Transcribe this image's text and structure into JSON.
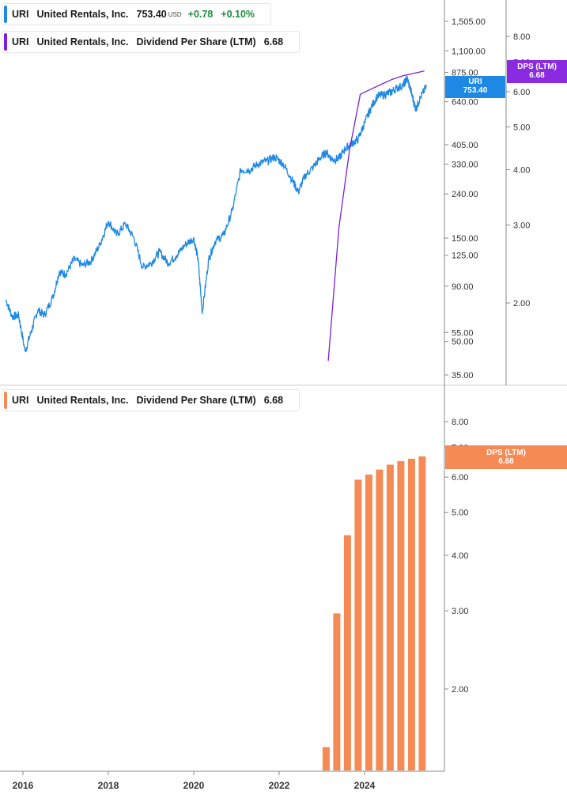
{
  "legends": {
    "price": {
      "ticker": "URI",
      "name": "United Rentals, Inc.",
      "price": "753.40",
      "currency": "USD",
      "change": "+0.78",
      "change_pct": "+0.10%"
    },
    "dps_line": {
      "ticker": "URI",
      "name": "United Rentals, Inc.",
      "metric": "Dividend Per Share (LTM)",
      "value": "6.68"
    },
    "dps_bar": {
      "ticker": "URI",
      "name": "United Rentals, Inc.",
      "metric": "Dividend Per Share (LTM)",
      "value": "6.68"
    }
  },
  "tags": {
    "price_tag": {
      "label": "URI",
      "value": "753.40"
    },
    "dps_tag_top": {
      "label": "DPS (LTM)",
      "value": "6.68"
    },
    "dps_tag_bottom": {
      "label": "DPS (LTM)",
      "value": "6.68"
    }
  },
  "colors": {
    "price_line": "#1e88e5",
    "dps_line": "#7b1fe0",
    "dps_bar": "#f58a55",
    "price_tag": "#1e88e5",
    "dps_tag_top": "#8a2be2",
    "dps_tag_bottom": "#f58a55"
  },
  "chart_data": [
    {
      "type": "line",
      "scale": "log",
      "series": [
        {
          "name": "URI",
          "kind": "price",
          "x": [
            2015.6,
            2015.75,
            2015.9,
            2016.05,
            2016.2,
            2016.35,
            2016.5,
            2016.7,
            2016.85,
            2017.0,
            2017.2,
            2017.4,
            2017.6,
            2017.8,
            2018.0,
            2018.2,
            2018.4,
            2018.6,
            2018.8,
            2019.0,
            2019.2,
            2019.4,
            2019.6,
            2019.8,
            2020.0,
            2020.1,
            2020.2,
            2020.35,
            2020.5,
            2020.7,
            2020.9,
            2021.1,
            2021.3,
            2021.5,
            2021.7,
            2021.9,
            2022.1,
            2022.3,
            2022.45,
            2022.6,
            2022.8,
            2022.95,
            2023.1,
            2023.25,
            2023.4,
            2023.55,
            2023.7,
            2023.85,
            2024.0,
            2024.15,
            2024.3,
            2024.45,
            2024.6,
            2024.75,
            2024.9,
            2025.0,
            2025.1,
            2025.2,
            2025.3,
            2025.45
          ],
          "values": [
            78,
            65,
            66,
            45,
            56,
            70,
            66,
            80,
            105,
            102,
            120,
            112,
            118,
            140,
            180,
            155,
            175,
            150,
            110,
            115,
            130,
            115,
            125,
            140,
            150,
            120,
            68,
            120,
            145,
            155,
            200,
            310,
            310,
            330,
            340,
            355,
            330,
            280,
            245,
            290,
            320,
            350,
            375,
            345,
            350,
            390,
            410,
            430,
            510,
            600,
            680,
            690,
            705,
            740,
            760,
            820,
            700,
            590,
            665,
            753.4
          ]
        }
      ],
      "yticks": [
        35,
        50,
        55,
        90,
        125,
        150,
        240,
        330,
        405,
        640,
        875,
        1100,
        1505
      ],
      "ylim": [
        30,
        1800
      ]
    },
    {
      "type": "line",
      "scale": "log",
      "series": [
        {
          "name": "DPS (LTM)",
          "kind": "dividend_per_share",
          "x": [
            2023.15,
            2023.4,
            2023.65,
            2023.9,
            2024.15,
            2024.4,
            2024.65,
            2024.9,
            2025.15,
            2025.4
          ],
          "values": [
            1.48,
            2.96,
            4.44,
            5.92,
            6.08,
            6.24,
            6.4,
            6.52,
            6.6,
            6.68
          ]
        }
      ],
      "yticks": [
        2.0,
        3.0,
        4.0,
        5.0,
        6.0,
        7.0,
        8.0
      ],
      "ylim": [
        1.45,
        9.0
      ]
    },
    {
      "type": "bar",
      "scale": "log",
      "series": [
        {
          "name": "DPS (LTM)",
          "x": [
            2023.1,
            2023.35,
            2023.6,
            2023.85,
            2024.1,
            2024.35,
            2024.6,
            2024.85,
            2025.1,
            2025.35
          ],
          "values": [
            1.48,
            2.96,
            4.44,
            5.92,
            6.08,
            6.24,
            6.4,
            6.52,
            6.6,
            6.68
          ]
        }
      ],
      "yticks": [
        2.0,
        3.0,
        4.0,
        5.0,
        6.0,
        7.0,
        8.0
      ],
      "ylim": [
        1.45,
        9.0
      ]
    }
  ],
  "x_axis": {
    "ticks": [
      2016,
      2018,
      2020,
      2022,
      2024
    ],
    "labels": [
      "2016",
      "2018",
      "2020",
      "2022",
      "2024"
    ]
  }
}
